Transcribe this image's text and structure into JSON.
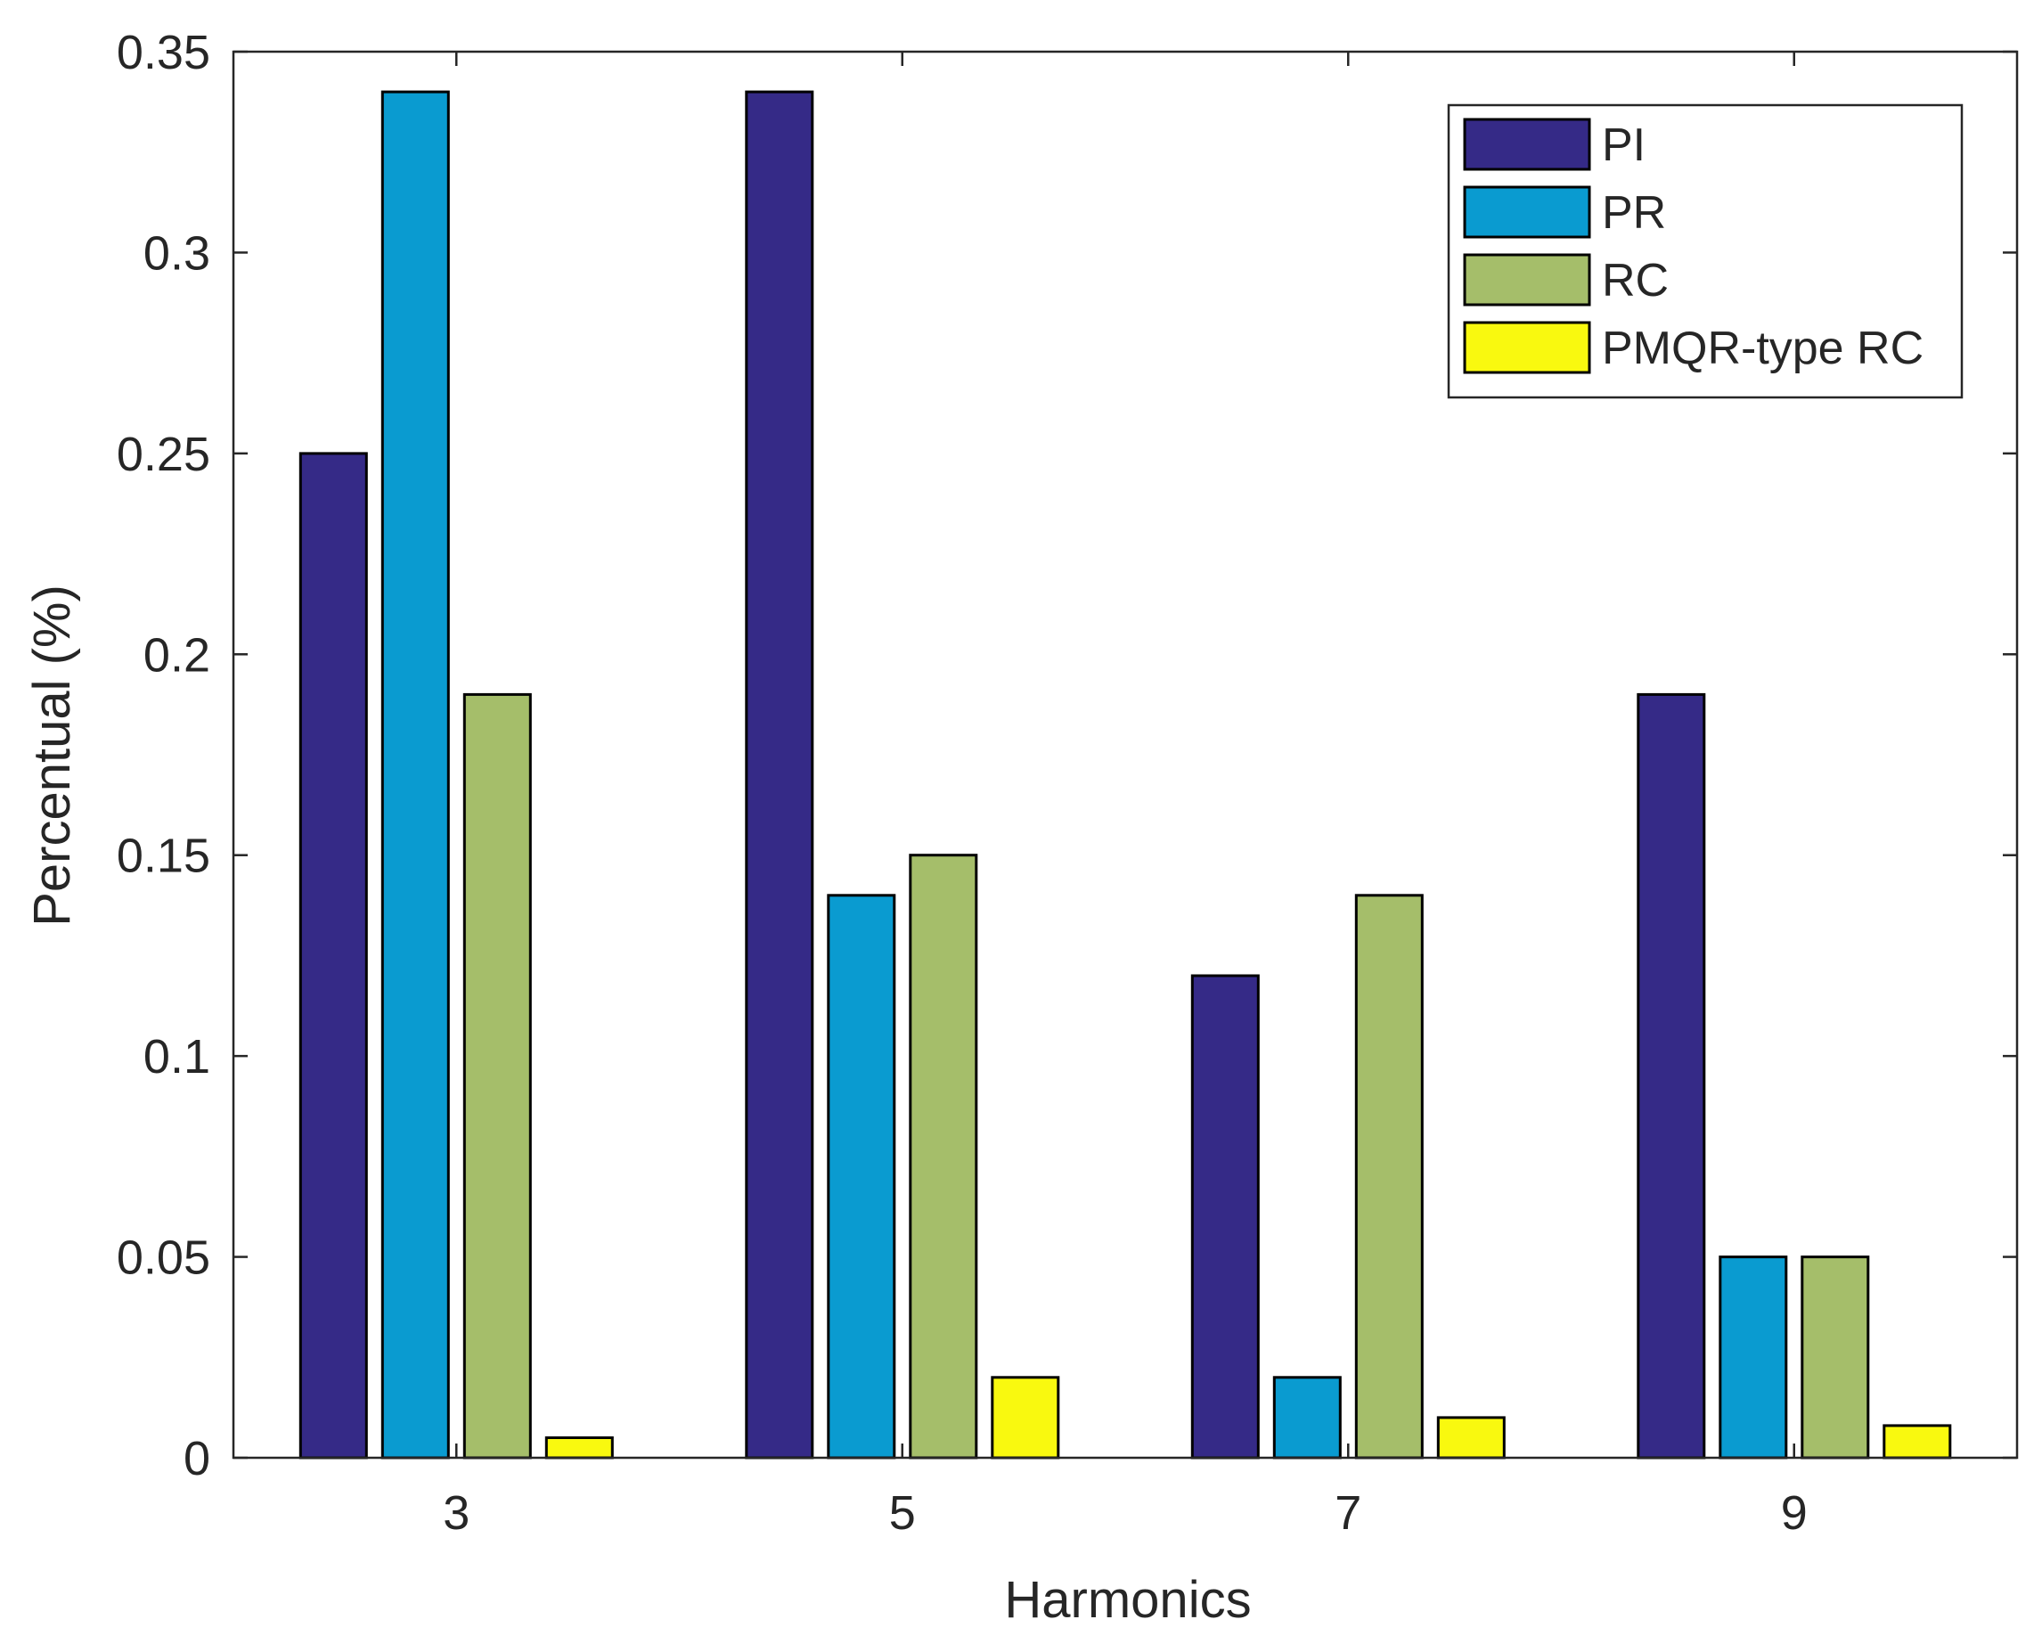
{
  "chart_data": {
    "type": "bar",
    "title": "",
    "xlabel": "Harmonics",
    "ylabel": "Percentual (%)",
    "categories": [
      "3",
      "5",
      "7",
      "9"
    ],
    "ylim": [
      0,
      0.35
    ],
    "yticks": [
      0,
      0.05,
      0.1,
      0.15,
      0.2,
      0.25,
      0.3,
      0.35
    ],
    "ytick_labels": [
      "0",
      "0.05",
      "0.1",
      "0.15",
      "0.2",
      "0.25",
      "0.3",
      "0.35"
    ],
    "grid": false,
    "legend_position": "top-right",
    "series": [
      {
        "name": "PI",
        "color": "#352a87",
        "values": [
          0.25,
          0.34,
          0.12,
          0.19
        ]
      },
      {
        "name": "PR",
        "color": "#0a9bd0",
        "values": [
          0.34,
          0.14,
          0.02,
          0.05
        ]
      },
      {
        "name": "RC",
        "color": "#a5be6a",
        "values": [
          0.19,
          0.15,
          0.14,
          0.05
        ]
      },
      {
        "name": "PMQR-type RC",
        "color": "#f9f90f",
        "values": [
          0.005,
          0.02,
          0.01,
          0.008
        ]
      }
    ]
  }
}
